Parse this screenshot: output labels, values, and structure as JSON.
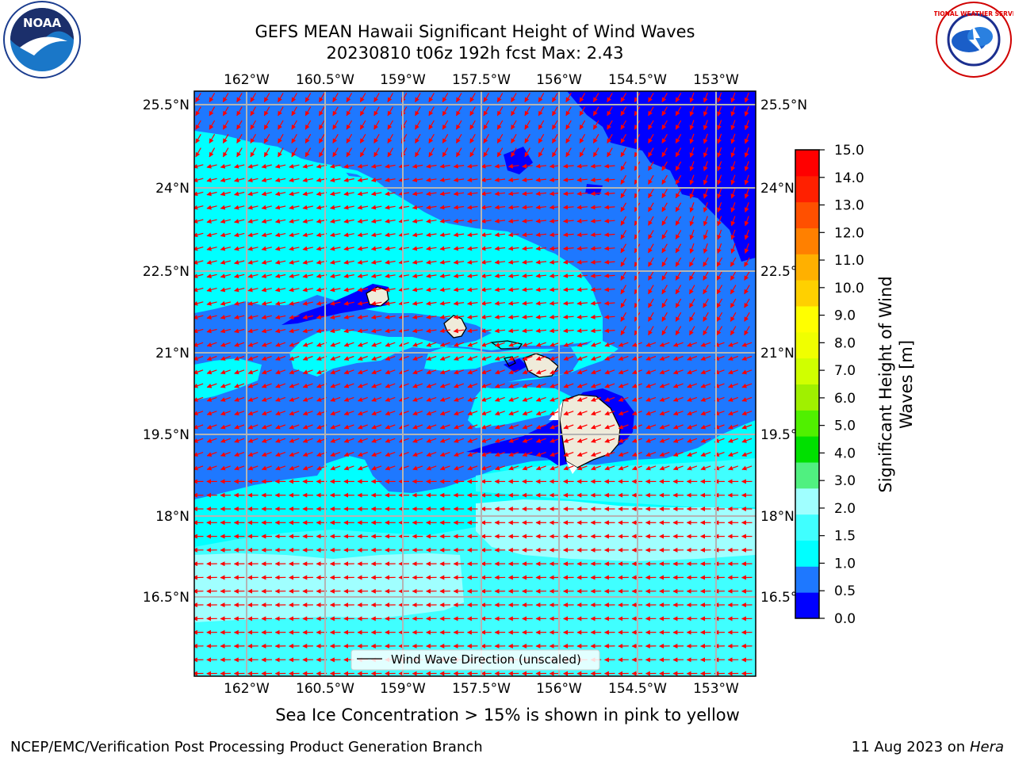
{
  "header": {
    "title_line1": "GEFS MEAN Hawaii Significant Height of Wind Waves",
    "title_line2": "20230810 t06z 192h fcst   Max: 2.43"
  },
  "logos": {
    "left": {
      "icon": "noaa-logo-icon",
      "text": "NOAA"
    },
    "right": {
      "icon": "nws-logo-icon",
      "text": "NATIONAL WEATHER SERVICE"
    }
  },
  "map": {
    "lon_labels": [
      "162°W",
      "160.5°W",
      "159°W",
      "157.5°W",
      "156°W",
      "154.5°W",
      "153°W"
    ],
    "lat_labels": [
      "25.5°N",
      "24°N",
      "22.5°N",
      "21°N",
      "19.5°N",
      "18°N",
      "16.5°N"
    ],
    "legend_label": "Wind Wave Direction (unscaled)",
    "arrow_color": "#ff0000",
    "land_color": "#efebda"
  },
  "colorbar": {
    "label_line1": "Significant Height of Wind",
    "label_line2": "Waves [m]",
    "ticks": [
      "0.0",
      "0.5",
      "1.0",
      "1.5",
      "2.0",
      "3.0",
      "4.0",
      "5.0",
      "6.0",
      "7.0",
      "8.0",
      "9.0",
      "10.0",
      "11.0",
      "12.0",
      "13.0",
      "14.0",
      "15.0"
    ],
    "colors": [
      "#0000ff",
      "#1e78ff",
      "#00ffff",
      "#40ffff",
      "#a0ffff",
      "#50f080",
      "#00e000",
      "#50f000",
      "#a0f000",
      "#d0ff00",
      "#f0ff00",
      "#ffff00",
      "#ffd000",
      "#ffb000",
      "#ff8000",
      "#ff5000",
      "#ff2000",
      "#ff0000"
    ]
  },
  "caption": "Sea Ice Concentration > 15% is shown in pink to yellow",
  "footer": {
    "left": "NCEP/EMC/Verification Post Processing Product Generation Branch",
    "right_date": "11 Aug 2023 on",
    "right_host": "Hera"
  }
}
